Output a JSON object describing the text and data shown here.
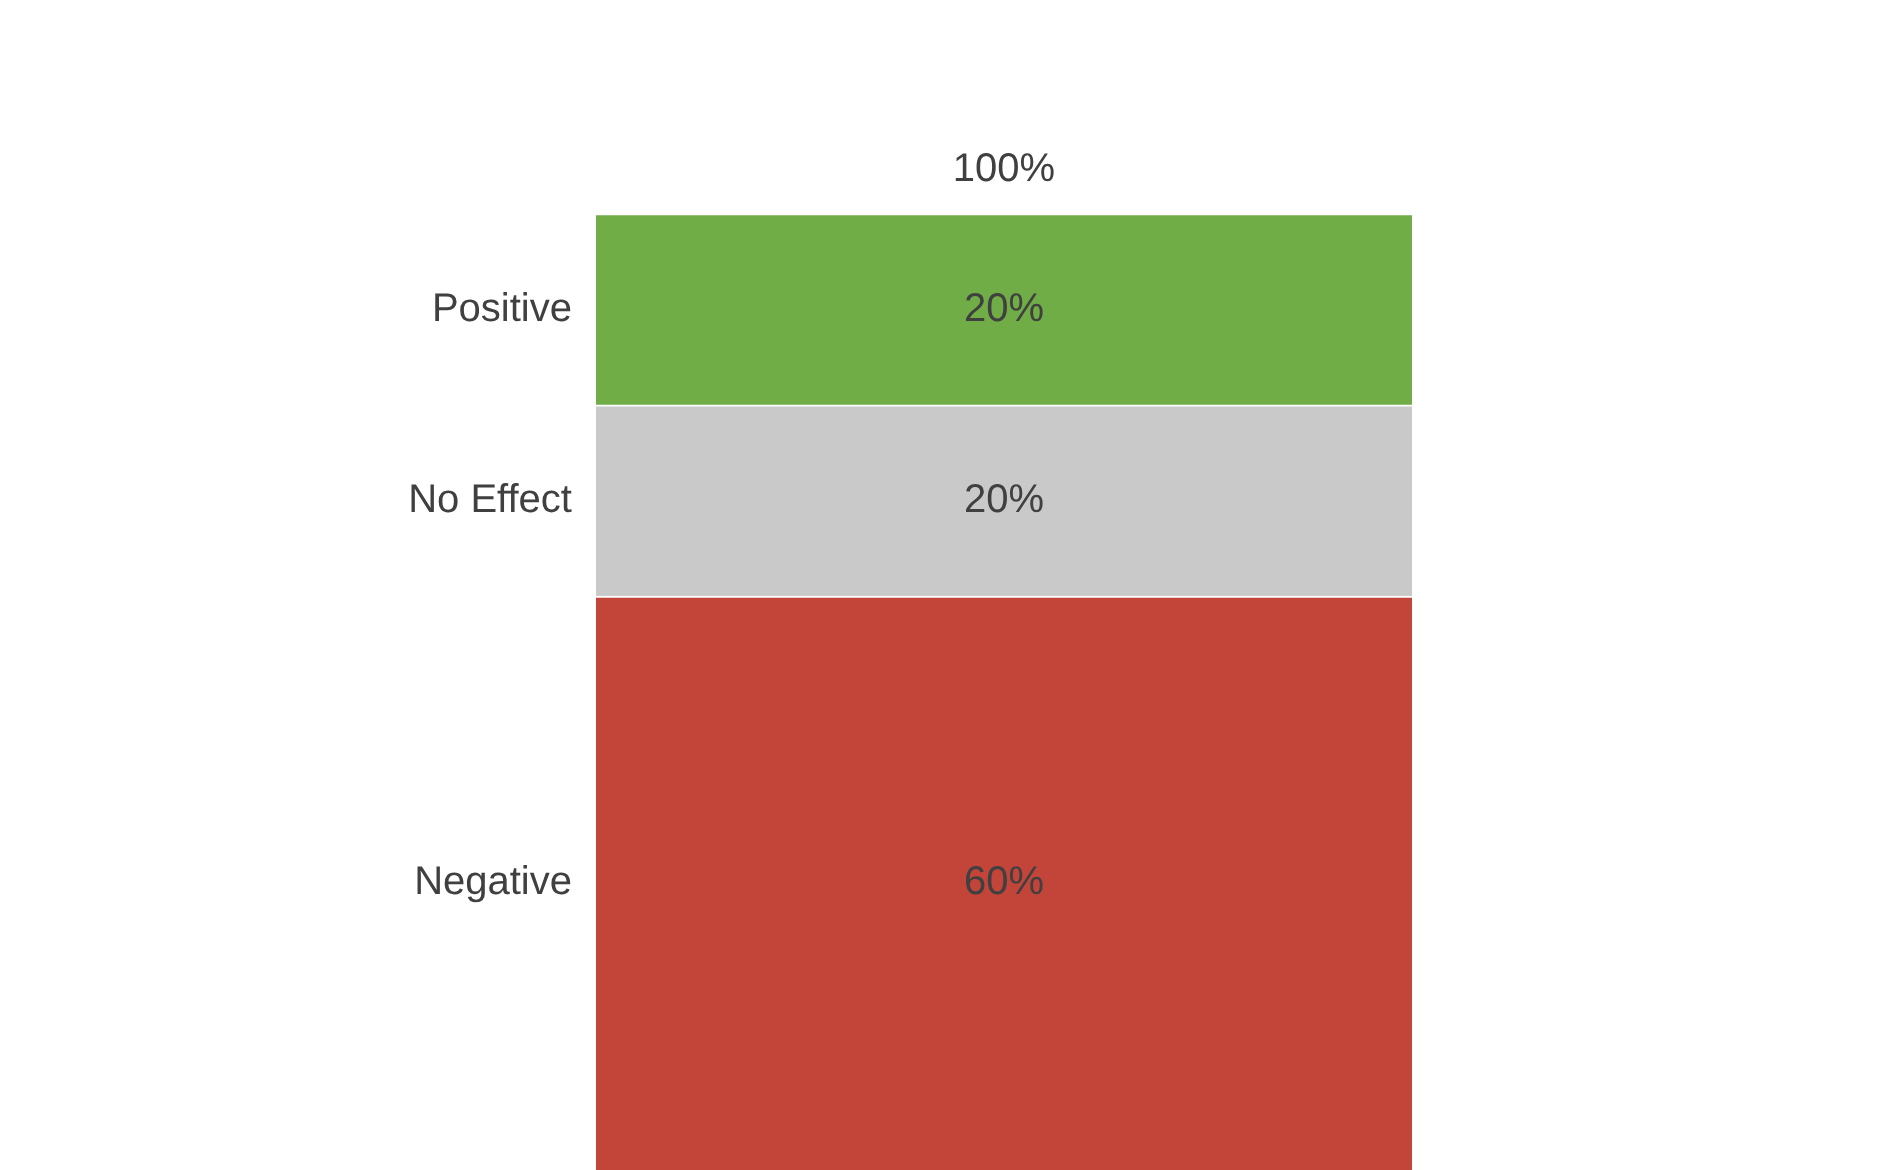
{
  "chart_data": {
    "type": "bar",
    "stacked": true,
    "categories": [
      null
    ],
    "ylim": [
      0,
      100
    ],
    "legend": false,
    "totals": [
      "100%"
    ],
    "series": [
      {
        "name": "Negative",
        "color": "#c3453a",
        "values": [
          60
        ],
        "value_labels": [
          "60%"
        ]
      },
      {
        "name": "No Effect",
        "color": "#c9c9c9",
        "values": [
          20
        ],
        "value_labels": [
          "20%"
        ]
      },
      {
        "name": "Positive",
        "color": "#70ad47",
        "values": [
          20
        ],
        "value_labels": [
          "20%"
        ]
      }
    ]
  }
}
